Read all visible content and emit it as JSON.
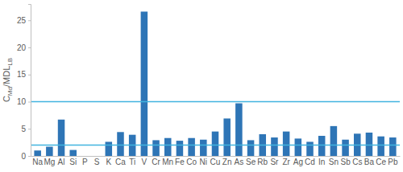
{
  "chart_data": {
    "type": "bar",
    "y_label": [
      "C",
      "Md",
      "/MDL",
      "LB"
    ],
    "categories": [
      "Na",
      "Mg",
      "Al",
      "Si",
      "P",
      "S",
      "K",
      "Ca",
      "Ti",
      "V",
      "Cr",
      "Mn",
      "Fe",
      "Co",
      "Ni",
      "Cu",
      "Zn",
      "As",
      "Se",
      "Rb",
      "Sr",
      "Zr",
      "Ag",
      "Cd",
      "In",
      "Sn",
      "Sb",
      "Cs",
      "Ba",
      "Ce",
      "Pb"
    ],
    "values": [
      1.0,
      1.7,
      6.7,
      1.1,
      0,
      0,
      2.6,
      4.4,
      3.9,
      26.6,
      2.9,
      3.3,
      2.8,
      3.3,
      3.0,
      4.5,
      6.9,
      9.7,
      2.9,
      4.0,
      3.4,
      4.5,
      3.2,
      2.6,
      3.7,
      5.5,
      3.0,
      4.1,
      4.3,
      3.6,
      3.4
    ],
    "color": "#2e75b6",
    "reference_lines": [
      {
        "value": 2,
        "color": "#41b4e0"
      },
      {
        "value": 10,
        "color": "#41b4e0"
      }
    ],
    "ylim": [
      0,
      28
    ],
    "yticks": [
      0,
      5,
      10,
      15,
      20,
      25
    ],
    "grid": false
  }
}
